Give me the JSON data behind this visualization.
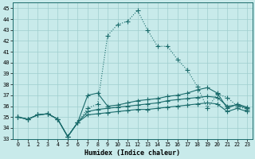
{
  "xlabel": "Humidex (Indice chaleur)",
  "xlim": [
    -0.5,
    23.5
  ],
  "ylim": [
    33,
    45.5
  ],
  "yticks": [
    33,
    34,
    35,
    36,
    37,
    38,
    39,
    40,
    41,
    42,
    43,
    44,
    45
  ],
  "xticks": [
    0,
    1,
    2,
    3,
    4,
    5,
    6,
    7,
    8,
    9,
    10,
    11,
    12,
    13,
    14,
    15,
    16,
    17,
    18,
    19,
    20,
    21,
    22,
    23
  ],
  "bg_color": "#c8eaea",
  "grid_color": "#9fcece",
  "line_color": "#1a6b6b",
  "line_peak": [
    35.0,
    34.8,
    35.2,
    35.3,
    34.8,
    33.2,
    34.5,
    35.8,
    36.2,
    42.5,
    43.5,
    43.8,
    44.8,
    43.0,
    41.5,
    41.5,
    40.3,
    39.3,
    37.8,
    35.8,
    37.1,
    36.8,
    36.0,
    35.7
  ],
  "line_moderate": [
    35.0,
    34.8,
    35.2,
    35.3,
    34.8,
    33.2,
    34.5,
    37.0,
    37.2,
    36.0,
    36.1,
    36.3,
    36.5,
    36.6,
    36.7,
    36.9,
    37.0,
    37.2,
    37.5,
    37.7,
    37.2,
    35.8,
    36.2,
    35.9
  ],
  "line_upper_flat": [
    35.0,
    34.8,
    35.2,
    35.3,
    34.8,
    33.2,
    34.5,
    35.5,
    35.7,
    35.8,
    35.9,
    36.0,
    36.1,
    36.2,
    36.3,
    36.5,
    36.6,
    36.7,
    36.8,
    36.9,
    36.8,
    36.0,
    36.1,
    35.8
  ],
  "line_lower_flat": [
    35.0,
    34.8,
    35.2,
    35.3,
    34.8,
    33.2,
    34.5,
    35.2,
    35.3,
    35.4,
    35.5,
    35.6,
    35.7,
    35.7,
    35.8,
    35.9,
    36.0,
    36.1,
    36.2,
    36.3,
    36.2,
    35.5,
    35.8,
    35.5
  ]
}
